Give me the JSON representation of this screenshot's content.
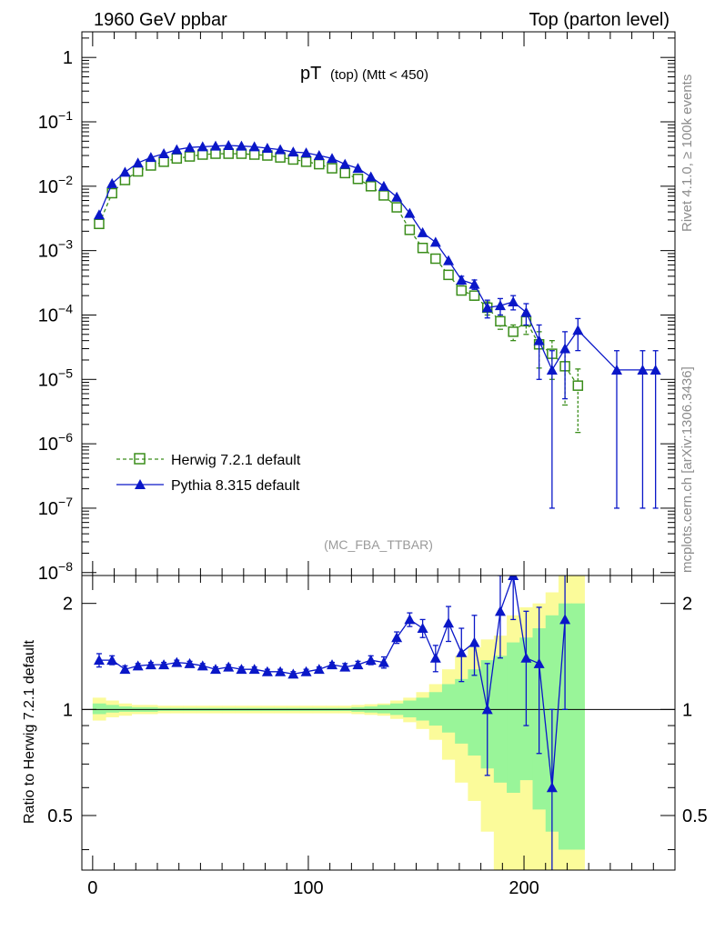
{
  "header": {
    "left": "1960 GeV ppbar",
    "right": "Top (parton level)"
  },
  "side_labels": {
    "rivet": "Rivet 4.1.0, ≥ 100k events",
    "mcplots": "mcplots.cern.ch [arXiv:1306.3436]"
  },
  "colors": {
    "herwig": "#3a8d1a",
    "pythia": "#0a17c8",
    "band_yellow": "#fbfb9a",
    "band_green": "#99f599"
  },
  "chart_data": [
    {
      "type": "line",
      "title": "pT (top) (Mtt < 450)",
      "title_main": "pT",
      "title_sub": "(top) (Mtt < 450)",
      "yscale": "log",
      "xlim": [
        -5,
        270
      ],
      "ylim": [
        9e-09,
        2.5
      ],
      "y_ticks": [
        {
          "value": 1,
          "base": "1",
          "exp": ""
        },
        {
          "value": 0.1,
          "base": "10",
          "exp": "−1"
        },
        {
          "value": 0.01,
          "base": "10",
          "exp": "−2"
        },
        {
          "value": 0.001,
          "base": "10",
          "exp": "−3"
        },
        {
          "value": 0.0001,
          "base": "10",
          "exp": "−4"
        },
        {
          "value": 1e-05,
          "base": "10",
          "exp": "−5"
        },
        {
          "value": 1e-06,
          "base": "10",
          "exp": "−6"
        },
        {
          "value": 1e-07,
          "base": "10",
          "exp": "−7"
        },
        {
          "value": 1e-08,
          "base": "10",
          "exp": "−8"
        }
      ],
      "watermark": "(MC_FBA_TTBAR)",
      "legend_position": "lower-left",
      "series": [
        {
          "name": "Herwig 7.2.1 default",
          "marker": "open-square",
          "style": "dashed",
          "x": [
            3,
            9,
            15,
            21,
            27,
            33,
            39,
            45,
            51,
            57,
            63,
            69,
            75,
            81,
            87,
            93,
            99,
            105,
            111,
            117,
            123,
            129,
            135,
            141,
            147,
            153,
            159,
            165,
            171,
            177,
            183,
            189,
            195,
            201,
            207,
            213,
            219,
            225
          ],
          "y": [
            0.0026,
            0.0078,
            0.0125,
            0.017,
            0.021,
            0.024,
            0.027,
            0.029,
            0.031,
            0.032,
            0.032,
            0.032,
            0.031,
            0.03,
            0.028,
            0.026,
            0.024,
            0.022,
            0.019,
            0.016,
            0.013,
            0.01,
            0.0072,
            0.0047,
            0.0021,
            0.0011,
            0.00075,
            0.00042,
            0.00024,
            0.0002,
            0.00013,
            8e-05,
            5.5e-05,
            8e-05,
            3.5e-05,
            2.5e-05,
            1.6e-05,
            8e-06
          ],
          "yerr": [
            0,
            0,
            0,
            0,
            0,
            0,
            0,
            0,
            0,
            0,
            0,
            0,
            0,
            0,
            0,
            0,
            0,
            0,
            0,
            0,
            0,
            0,
            0,
            0,
            0,
            0,
            0,
            0,
            3e-05,
            3e-05,
            3e-05,
            2e-05,
            1.5e-05,
            3e-05,
            2e-05,
            1.5e-05,
            1.2e-05,
            6.5e-06
          ]
        },
        {
          "name": "Pythia 8.315 default",
          "marker": "filled-triangle",
          "style": "solid",
          "x": [
            3,
            9,
            15,
            21,
            27,
            33,
            39,
            45,
            51,
            57,
            63,
            69,
            75,
            81,
            87,
            93,
            99,
            105,
            111,
            117,
            123,
            129,
            135,
            141,
            147,
            153,
            159,
            165,
            171,
            177,
            183,
            189,
            195,
            201,
            207,
            213,
            219,
            225,
            243,
            255,
            261
          ],
          "y": [
            0.0036,
            0.011,
            0.0165,
            0.023,
            0.028,
            0.032,
            0.037,
            0.04,
            0.041,
            0.042,
            0.043,
            0.042,
            0.041,
            0.039,
            0.037,
            0.034,
            0.033,
            0.03,
            0.027,
            0.022,
            0.019,
            0.014,
            0.01,
            0.0068,
            0.0038,
            0.0019,
            0.00135,
            0.0007,
            0.00035,
            0.0003,
            0.00013,
            0.00014,
            0.00016,
            0.00011,
            4e-05,
            1.4e-05,
            3e-05,
            5.8e-05,
            1.4e-05,
            1.4e-05,
            1.4e-05
          ],
          "yerr": [
            0,
            0,
            0,
            0,
            0,
            0,
            0,
            0,
            0,
            0,
            0,
            0,
            0,
            0,
            0,
            0,
            0,
            0,
            0,
            0,
            0,
            0,
            0,
            0,
            0,
            0,
            0,
            0,
            5e-05,
            5e-05,
            4e-05,
            4e-05,
            4e-05,
            4e-05,
            3e-05,
            1.39e-05,
            2.5e-05,
            3e-05,
            1.39e-05,
            1.39e-05,
            1.39e-05
          ]
        }
      ]
    },
    {
      "type": "line",
      "ylabel": "Ratio to Herwig 7.2.1 default",
      "yscale": "log",
      "xlim": [
        -5,
        270
      ],
      "ylim": [
        0.35,
        2.4
      ],
      "x_ticks": [
        "0",
        "100",
        "200"
      ],
      "x_tick_values": [
        0,
        100,
        200
      ],
      "y_ticks": [
        "0.5",
        "1",
        "2"
      ],
      "y_tick_values": [
        0.5,
        1,
        2
      ],
      "reference_line": 1,
      "band_edges": [
        0,
        6,
        12,
        18,
        24,
        30,
        36,
        42,
        48,
        54,
        60,
        66,
        72,
        78,
        84,
        90,
        96,
        102,
        108,
        114,
        120,
        126,
        132,
        138,
        144,
        150,
        156,
        162,
        168,
        174,
        180,
        186,
        192,
        198,
        204,
        210,
        216,
        222,
        228
      ],
      "band_yellow_lo": [
        0.93,
        0.95,
        0.96,
        0.97,
        0.97,
        0.975,
        0.975,
        0.975,
        0.975,
        0.975,
        0.975,
        0.975,
        0.975,
        0.975,
        0.975,
        0.975,
        0.975,
        0.975,
        0.975,
        0.975,
        0.97,
        0.965,
        0.96,
        0.94,
        0.92,
        0.88,
        0.82,
        0.72,
        0.62,
        0.55,
        0.45,
        0.35,
        0.3,
        0.3,
        0.3,
        0.3,
        0.3,
        0.3
      ],
      "band_yellow_hi": [
        1.08,
        1.06,
        1.04,
        1.03,
        1.03,
        1.025,
        1.025,
        1.025,
        1.025,
        1.025,
        1.025,
        1.025,
        1.025,
        1.025,
        1.025,
        1.025,
        1.025,
        1.025,
        1.025,
        1.025,
        1.03,
        1.035,
        1.04,
        1.06,
        1.08,
        1.12,
        1.18,
        1.3,
        1.42,
        1.5,
        1.58,
        1.62,
        1.85,
        1.95,
        2.0,
        2.15,
        2.5,
        2.5
      ],
      "band_green_lo": [
        0.97,
        0.98,
        0.985,
        0.985,
        0.985,
        0.99,
        0.99,
        0.99,
        0.99,
        0.99,
        0.99,
        0.99,
        0.99,
        0.99,
        0.99,
        0.99,
        0.99,
        0.99,
        0.99,
        0.99,
        0.985,
        0.98,
        0.975,
        0.965,
        0.95,
        0.93,
        0.9,
        0.86,
        0.8,
        0.74,
        0.68,
        0.62,
        0.58,
        0.63,
        0.52,
        0.45,
        0.4,
        0.4
      ],
      "band_green_hi": [
        1.04,
        1.03,
        1.02,
        1.015,
        1.015,
        1.01,
        1.01,
        1.01,
        1.01,
        1.01,
        1.01,
        1.01,
        1.01,
        1.01,
        1.01,
        1.01,
        1.01,
        1.01,
        1.01,
        1.01,
        1.015,
        1.02,
        1.03,
        1.04,
        1.06,
        1.08,
        1.12,
        1.18,
        1.22,
        1.3,
        1.38,
        1.42,
        1.55,
        1.6,
        1.7,
        1.85,
        2.0,
        2.0
      ],
      "pythia_ratio": {
        "x": [
          3,
          9,
          15,
          21,
          27,
          33,
          39,
          45,
          51,
          57,
          63,
          69,
          75,
          81,
          87,
          93,
          99,
          105,
          111,
          117,
          123,
          129,
          135,
          141,
          147,
          153,
          159,
          165,
          171,
          177,
          183,
          189,
          195,
          201,
          207,
          213,
          219
        ],
        "y": [
          1.38,
          1.38,
          1.3,
          1.33,
          1.34,
          1.34,
          1.36,
          1.35,
          1.33,
          1.3,
          1.32,
          1.3,
          1.3,
          1.28,
          1.28,
          1.26,
          1.28,
          1.3,
          1.34,
          1.32,
          1.34,
          1.38,
          1.36,
          1.6,
          1.8,
          1.7,
          1.4,
          1.76,
          1.45,
          1.55,
          1.0,
          1.9,
          2.4,
          1.4,
          1.35,
          0.6,
          1.8
        ],
        "yerr": [
          0.06,
          0.04,
          0.03,
          0.02,
          0.02,
          0.02,
          0.02,
          0.02,
          0.02,
          0.02,
          0.02,
          0.02,
          0.02,
          0.02,
          0.02,
          0.02,
          0.02,
          0.02,
          0.02,
          0.03,
          0.03,
          0.04,
          0.05,
          0.06,
          0.08,
          0.1,
          0.12,
          0.2,
          0.25,
          0.3,
          0.35,
          0.5,
          0.6,
          0.5,
          0.6,
          0.4,
          0.8
        ]
      }
    }
  ]
}
